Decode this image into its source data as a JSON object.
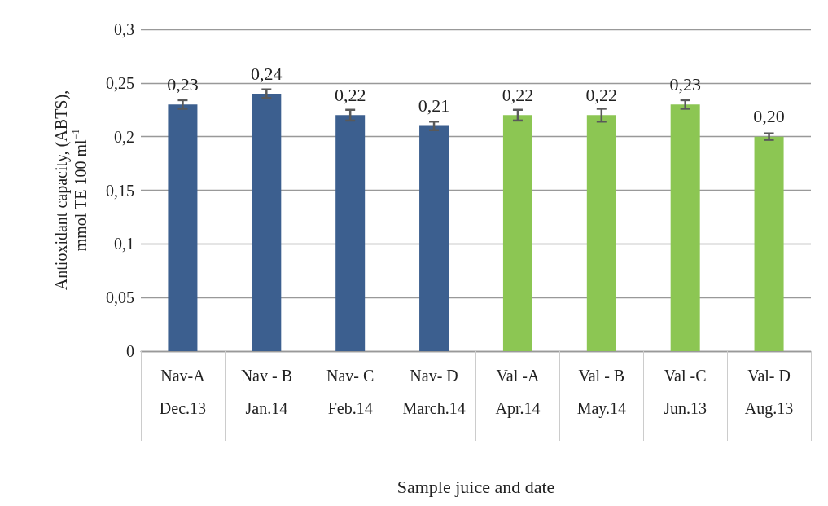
{
  "chart_data": {
    "type": "bar",
    "xlabel": "Sample juice and date",
    "ylabel": "Antioxidant capacity, (ABTS),\nmmol TE 100 ml$^{−1}$",
    "categories": [
      "Nav-A\nDec.13",
      "Nav - B\nJan.14",
      "Nav- C\nFeb.14",
      "Nav- D\nMarch.14",
      "Val -A\nApr.14",
      "Val - B\nMay.14",
      "Val -C\nJun.13",
      "Val- D\nAug.13"
    ],
    "values": [
      0.23,
      0.24,
      0.22,
      0.21,
      0.22,
      0.22,
      0.23,
      0.2
    ],
    "value_labels": [
      "0,23",
      "0,24",
      "0,22",
      "0,21",
      "0,22",
      "0,22",
      "0,23",
      "0,20"
    ],
    "errors": [
      0.004,
      0.004,
      0.005,
      0.004,
      0.005,
      0.006,
      0.004,
      0.003
    ],
    "colors": [
      "#3c5f8f",
      "#3c5f8f",
      "#3c5f8f",
      "#3c5f8f",
      "#8cc653",
      "#8cc653",
      "#8cc653",
      "#8cc653"
    ],
    "ylim": [
      0,
      0.3
    ],
    "yticks": [
      {
        "value": 0,
        "label": "0"
      },
      {
        "value": 0.05,
        "label": "0,05"
      },
      {
        "value": 0.1,
        "label": "0,1"
      },
      {
        "value": 0.15,
        "label": "0,15"
      },
      {
        "value": 0.2,
        "label": "0,2"
      },
      {
        "value": 0.25,
        "label": "0,25"
      },
      {
        "value": 0.3,
        "label": "0,3"
      }
    ],
    "grid": "y"
  }
}
